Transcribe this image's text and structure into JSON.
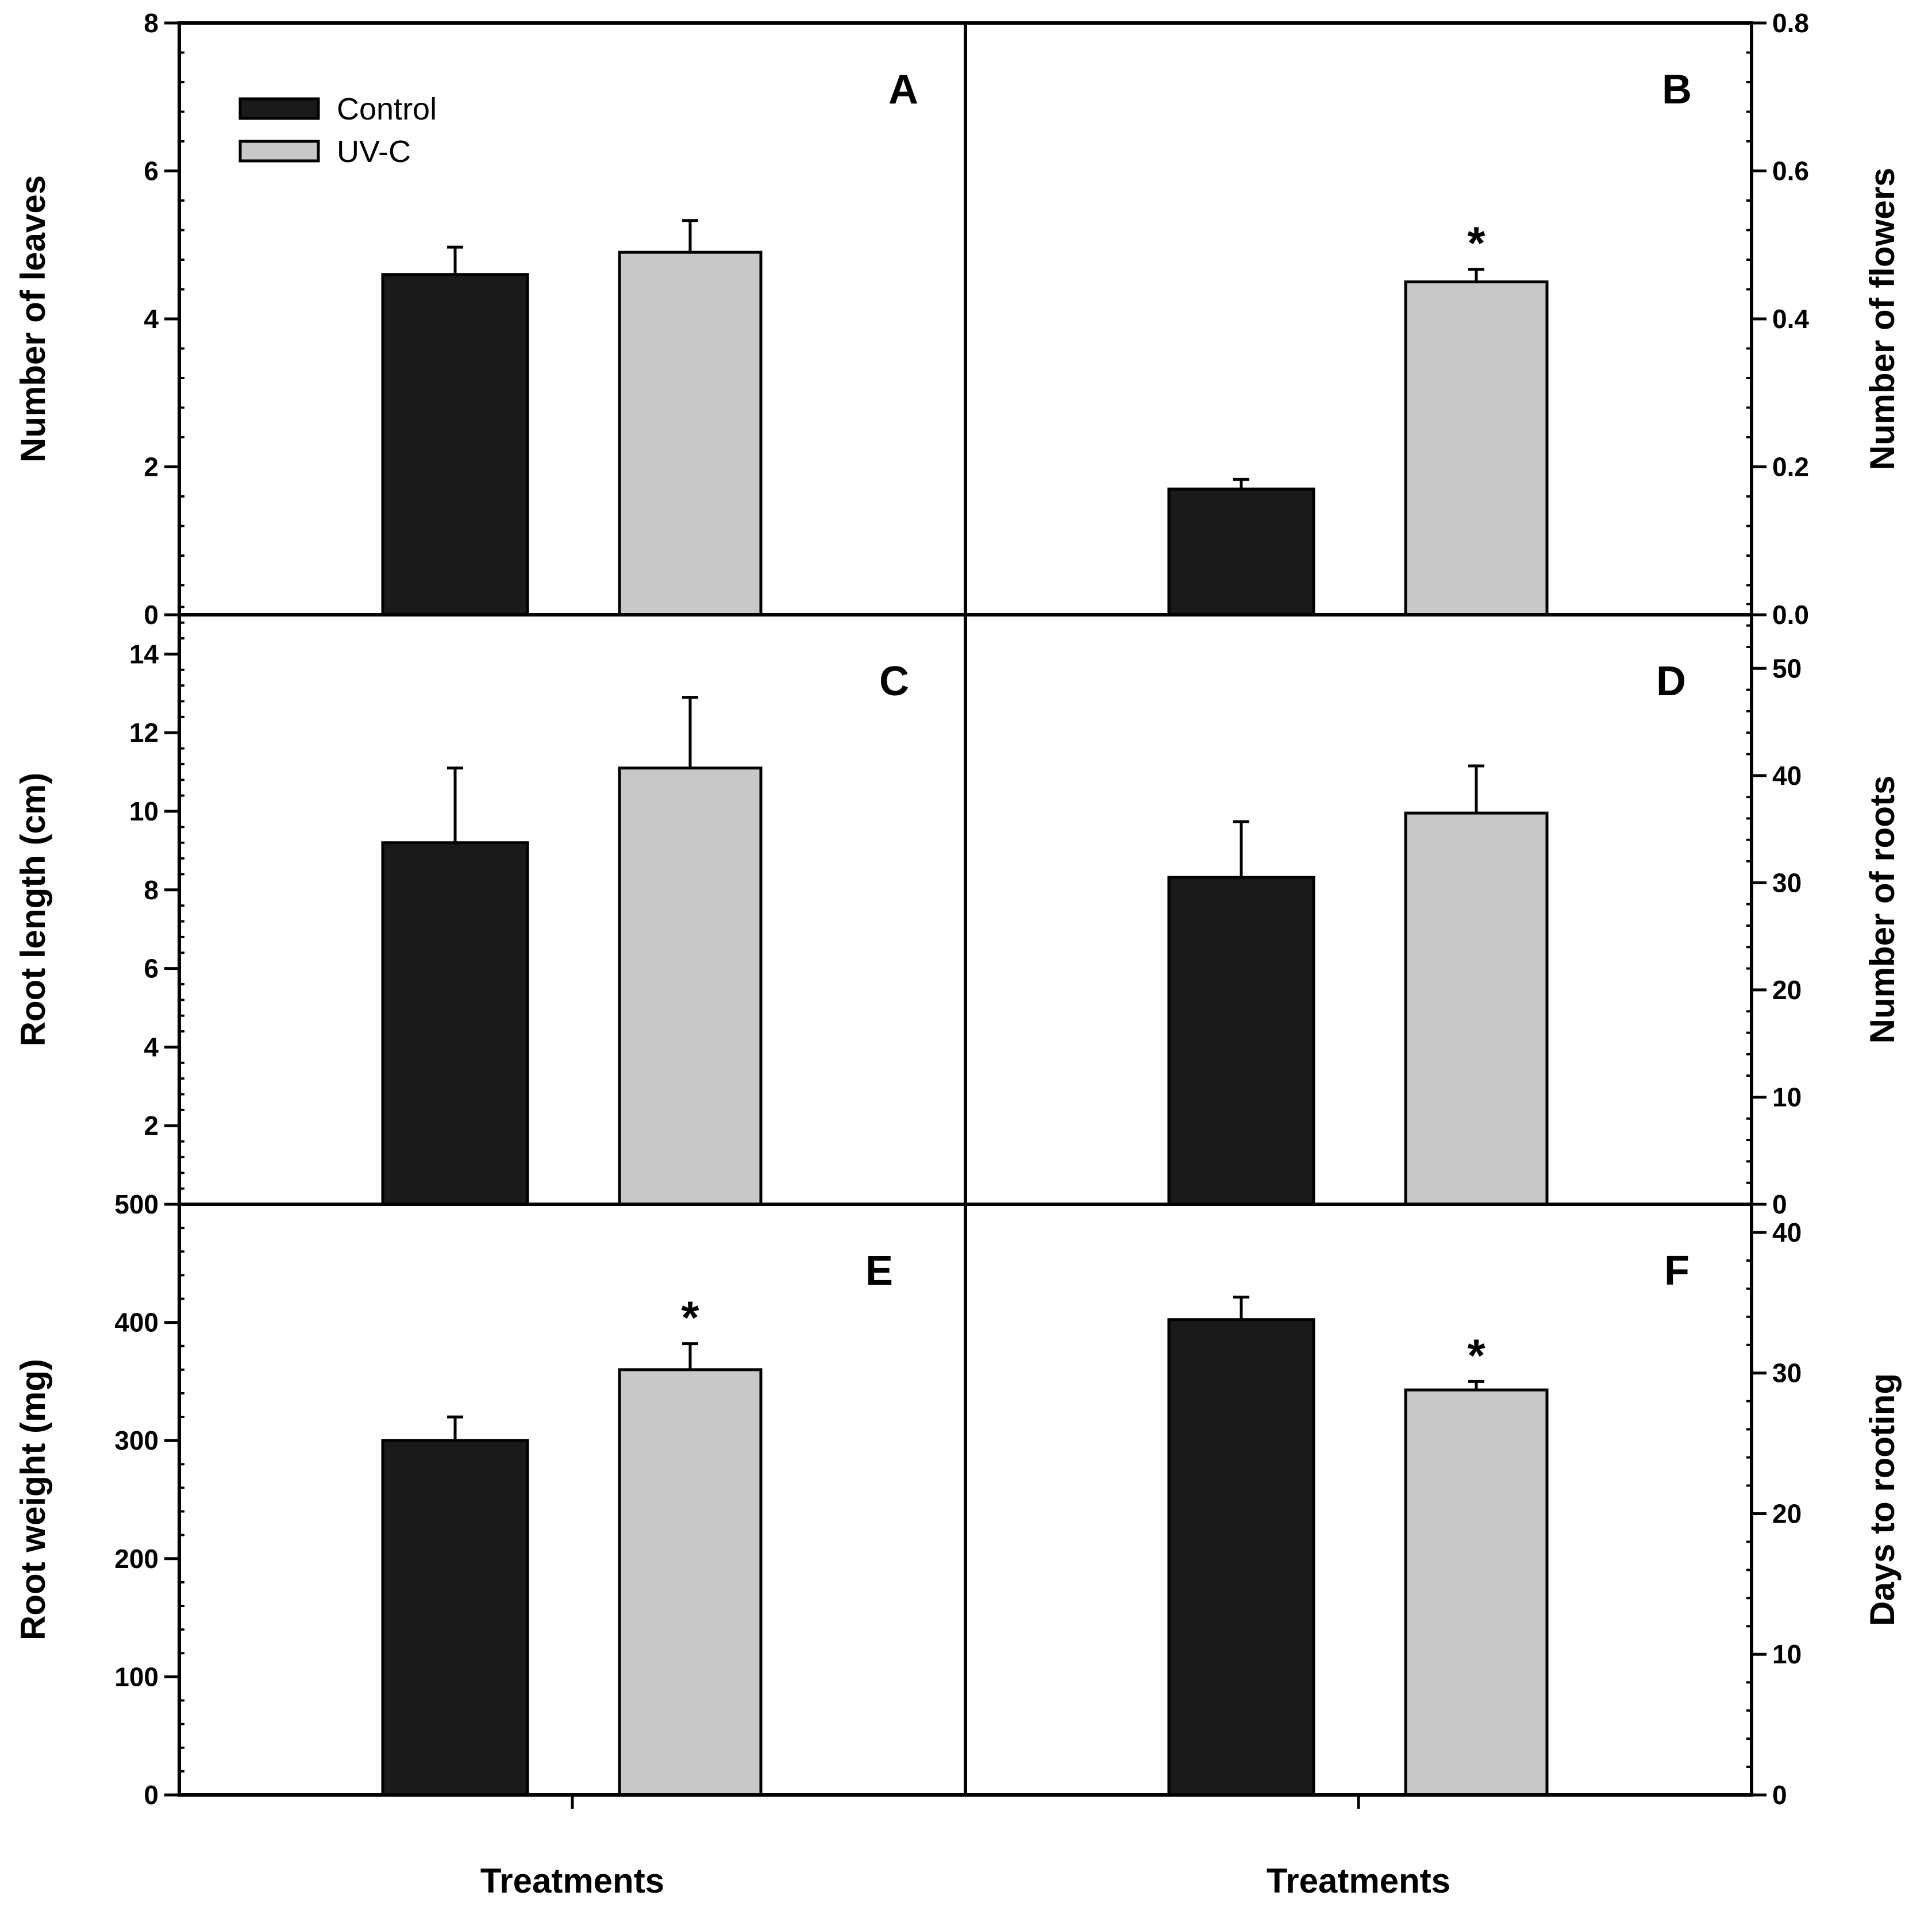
{
  "legend": [
    {
      "label": "Control",
      "color": "#1a1a1a"
    },
    {
      "label": "UV-C",
      "color": "#c8c8c8"
    }
  ],
  "chart_data": [
    {
      "type": "bar",
      "panel": "A",
      "categories": [
        "Control",
        "UV-C"
      ],
      "values": [
        4.6,
        4.9
      ],
      "errors": [
        0.37,
        0.43
      ],
      "significant": [
        false,
        false
      ],
      "ylabel": "Number of leaves",
      "ylim": [
        0,
        8
      ],
      "yticks": [
        0,
        2,
        4,
        6,
        8
      ],
      "tick_labels": [
        "0",
        "2",
        "4",
        "6",
        "8"
      ],
      "minor_step": 0.4,
      "axis_side": "left",
      "xlabel": ""
    },
    {
      "type": "bar",
      "panel": "B",
      "categories": [
        "Control",
        "UV-C"
      ],
      "values": [
        0.17,
        0.45
      ],
      "errors": [
        0.013,
        0.017
      ],
      "significant": [
        false,
        true
      ],
      "ylabel": "Number of flowers",
      "ylim": [
        0,
        0.8
      ],
      "yticks": [
        0,
        0.2,
        0.4,
        0.6,
        0.8
      ],
      "tick_labels": [
        "0.0",
        "0.2",
        "0.4",
        "0.6",
        "0.8"
      ],
      "minor_step": 0.04,
      "axis_side": "right",
      "xlabel": ""
    },
    {
      "type": "bar",
      "panel": "C",
      "categories": [
        "Control",
        "UV-C"
      ],
      "values": [
        9.2,
        11.1
      ],
      "errors": [
        1.9,
        1.8
      ],
      "significant": [
        false,
        false
      ],
      "ylabel": "Root length (cm)",
      "ylim": [
        0,
        15
      ],
      "yticks": [
        0,
        2,
        4,
        6,
        8,
        10,
        12,
        14
      ],
      "tick_labels": [
        "0",
        "2",
        "4",
        "6",
        "8",
        "10",
        "12",
        "14"
      ],
      "minor_step": 0.4,
      "axis_side": "left",
      "xlabel": ""
    },
    {
      "type": "bar",
      "panel": "D",
      "categories": [
        "Control",
        "UV-C"
      ],
      "values": [
        30.5,
        36.5
      ],
      "errors": [
        5.2,
        4.4
      ],
      "significant": [
        false,
        false
      ],
      "ylabel": "Number of roots",
      "ylim": [
        0,
        55
      ],
      "yticks": [
        0,
        10,
        20,
        30,
        40,
        50
      ],
      "tick_labels": [
        "0",
        "10",
        "20",
        "30",
        "40",
        "50"
      ],
      "minor_step": 2,
      "axis_side": "right",
      "xlabel": ""
    },
    {
      "type": "bar",
      "panel": "E",
      "categories": [
        "Control",
        "UV-C"
      ],
      "values": [
        300,
        360
      ],
      "errors": [
        20,
        22
      ],
      "significant": [
        false,
        true
      ],
      "ylabel": "Root weight (mg)",
      "ylim": [
        0,
        500
      ],
      "yticks": [
        0,
        100,
        200,
        300,
        400,
        500
      ],
      "tick_labels": [
        "0",
        "100",
        "200",
        "300",
        "400",
        "500"
      ],
      "minor_step": 20,
      "axis_side": "left",
      "xlabel": "Treatments"
    },
    {
      "type": "bar",
      "panel": "F",
      "categories": [
        "Control",
        "UV-C"
      ],
      "values": [
        33.8,
        28.8
      ],
      "errors": [
        1.6,
        0.6
      ],
      "significant": [
        false,
        true
      ],
      "ylabel": "Days to rooting",
      "ylim": [
        0,
        42
      ],
      "yticks": [
        0,
        10,
        20,
        30,
        40
      ],
      "tick_labels": [
        "0",
        "10",
        "20",
        "30",
        "40"
      ],
      "minor_step": 2,
      "axis_side": "right",
      "xlabel": "Treatments"
    }
  ]
}
